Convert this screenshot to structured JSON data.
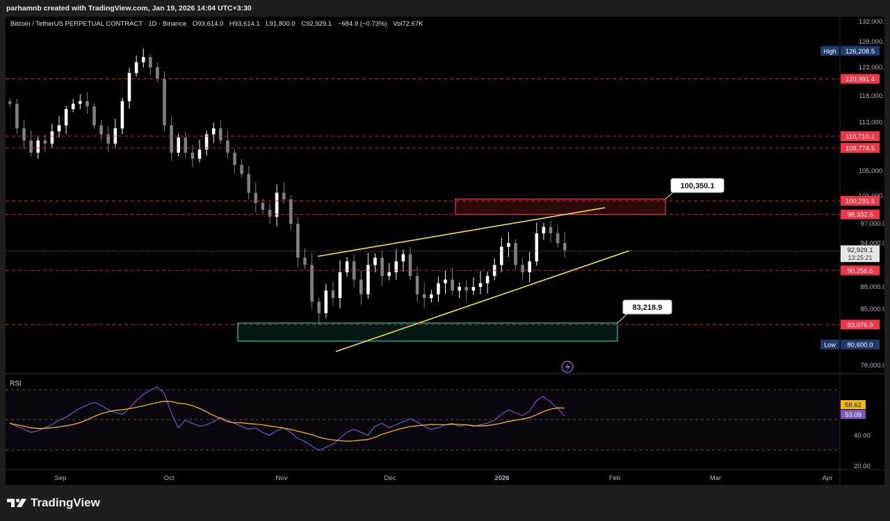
{
  "header": {
    "creator_line": "parhamnb created with TradingView.com, Jan 19, 2026 14:04 UTC+3:30"
  },
  "symbol": {
    "title": "Bitcoin / TetherUS PERPETUAL CONTRACT · 1D · Binance",
    "open": "O93,614.0",
    "high": "H93,614.1",
    "low": "L91,800.0",
    "close": "C92,929.1",
    "change": "−684.9 (−0.73%)",
    "volume": "Vol72.67K"
  },
  "colors": {
    "background": "#000000",
    "frame": "#1e1e1e",
    "bull": "#ffffff",
    "bear": "#808080",
    "level_line": "#c62828",
    "level_tag": "#f23645",
    "trendline": "#f5e63b",
    "supply_zone": "#f23645",
    "demand_zone": "#2ec4a5",
    "rsi_line": "#7e57c2",
    "rsi_ma": "#f0b90b",
    "hl_tag": "#1e3a6e"
  },
  "price_axis": {
    "labels": [
      "132,000.0",
      "128,000.0",
      "123,000.0",
      "118,000.0",
      "113,000.0",
      "105,000.0",
      "101,000.0",
      "97,000.0",
      "94,000.0",
      "88,000.0",
      "85,000.0",
      "78,000.0"
    ],
    "levels": [
      "120,991.4",
      "110,710.1",
      "108,774.5",
      "100,291.5",
      "98,332.5",
      "90,256.6",
      "83,076.9"
    ],
    "high": {
      "label": "High",
      "value": "126,208.5"
    },
    "low": {
      "label": "Low",
      "value": "80,600.0"
    },
    "current": {
      "value": "92,929.1",
      "countdown": "13:25:21"
    }
  },
  "time_axis": {
    "labels": [
      "Sep",
      "Oct",
      "Nov",
      "Dec",
      "2026",
      "Feb",
      "Mar",
      "Apr"
    ]
  },
  "annotations": {
    "supply_callout": "100,350.1",
    "demand_callout": "83,218.9"
  },
  "rsi": {
    "title": "RSI",
    "axis_labels": [
      "40.00",
      "20.00"
    ],
    "value_ma": "58.62",
    "value_rsi": "53.09"
  },
  "footer": {
    "brand": "TradingView"
  },
  "chart_data": {
    "type": "candlestick",
    "title": "Bitcoin / TetherUS PERPETUAL CONTRACT · 1D · Binance",
    "x_labels": [
      "Sep",
      "Oct",
      "Nov",
      "Dec",
      "2026",
      "Feb",
      "Mar",
      "Apr"
    ],
    "ylim": [
      77000,
      133000
    ],
    "ohlc_close_path": [
      116500,
      112000,
      110000,
      108000,
      110000,
      109500,
      111500,
      112500,
      115500,
      116500,
      117000,
      116000,
      112500,
      111000,
      109500,
      112000,
      117000,
      122000,
      124000,
      125000,
      123000,
      121000,
      112500,
      108000,
      110500,
      108000,
      107000,
      108500,
      111000,
      112000,
      110000,
      108000,
      106000,
      104500,
      101500,
      100000,
      99000,
      98000,
      101500,
      100500,
      97000,
      92000,
      91000,
      86000,
      84500,
      87500,
      86500,
      90000,
      91500,
      89000,
      87000,
      91000,
      92000,
      89500,
      90000,
      91500,
      92500,
      89500,
      87000,
      86500,
      87000,
      88500,
      89000,
      87500,
      88000,
      87500,
      88000,
      88500,
      89500,
      91000,
      93500,
      94000,
      91000,
      90000,
      91500,
      95500,
      96500,
      95500,
      94000,
      93000
    ],
    "levels": [
      120991.4,
      110710.1,
      108774.5,
      100291.5,
      98332.5,
      90256.6,
      83076.9
    ],
    "high": 126208.5,
    "low": 80600.0,
    "last": 92929.1,
    "zones": [
      {
        "kind": "supply",
        "price_top": 100350.1,
        "price_bottom": 98332.5
      },
      {
        "kind": "demand",
        "price_top": 83218.9,
        "price_bottom": 80800.0
      }
    ],
    "rsi": {
      "last_rsi": 53.09,
      "last_ma": 58.62,
      "series": [
        48,
        46,
        44,
        42,
        43,
        45,
        47,
        50,
        52,
        55,
        58,
        60,
        62,
        60,
        57,
        55,
        54,
        58,
        63,
        67,
        70,
        72,
        68,
        55,
        45,
        50,
        48,
        46,
        47,
        49,
        52,
        50,
        48,
        46,
        44,
        45,
        42,
        40,
        43,
        45,
        42,
        38,
        36,
        33,
        30,
        32,
        34,
        38,
        42,
        44,
        42,
        40,
        46,
        48,
        45,
        47,
        49,
        51,
        49,
        46,
        44,
        45,
        47,
        48,
        46,
        47,
        46,
        47,
        48,
        50,
        54,
        57,
        55,
        53,
        56,
        63,
        66,
        62,
        58,
        53
      ]
    }
  }
}
